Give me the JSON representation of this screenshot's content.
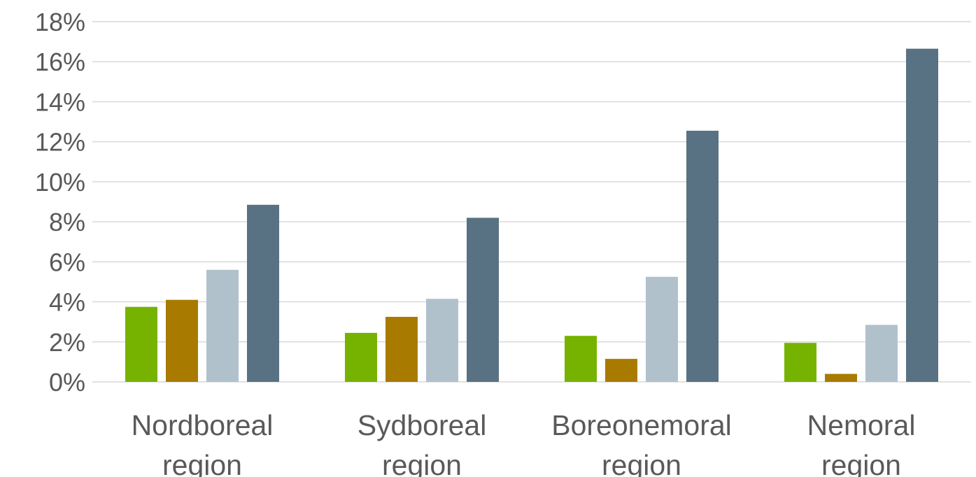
{
  "chart_data": {
    "type": "bar",
    "categories": [
      [
        "Nordboreal",
        "region"
      ],
      [
        "Sydboreal",
        "region"
      ],
      [
        "Boreonemoral",
        "region"
      ],
      [
        "Nemoral",
        "region"
      ]
    ],
    "series": [
      {
        "color": "#76b300",
        "values": [
          3.75,
          2.45,
          2.3,
          1.95
        ]
      },
      {
        "color": "#a87b00",
        "values": [
          4.1,
          3.25,
          1.15,
          0.4
        ]
      },
      {
        "color": "#b1c1cc",
        "values": [
          5.6,
          4.15,
          5.25,
          2.85
        ]
      },
      {
        "color": "#587284",
        "values": [
          8.85,
          8.2,
          12.55,
          16.65
        ]
      }
    ],
    "ylim": [
      0,
      18
    ],
    "yticks": [
      0,
      2,
      4,
      6,
      8,
      10,
      12,
      14,
      16,
      18
    ],
    "ytick_labels": [
      "0%",
      "2%",
      "4%",
      "6%",
      "8%",
      "10%",
      "12%",
      "14%",
      "16%",
      "18%"
    ],
    "grid": true,
    "legend": "none"
  }
}
